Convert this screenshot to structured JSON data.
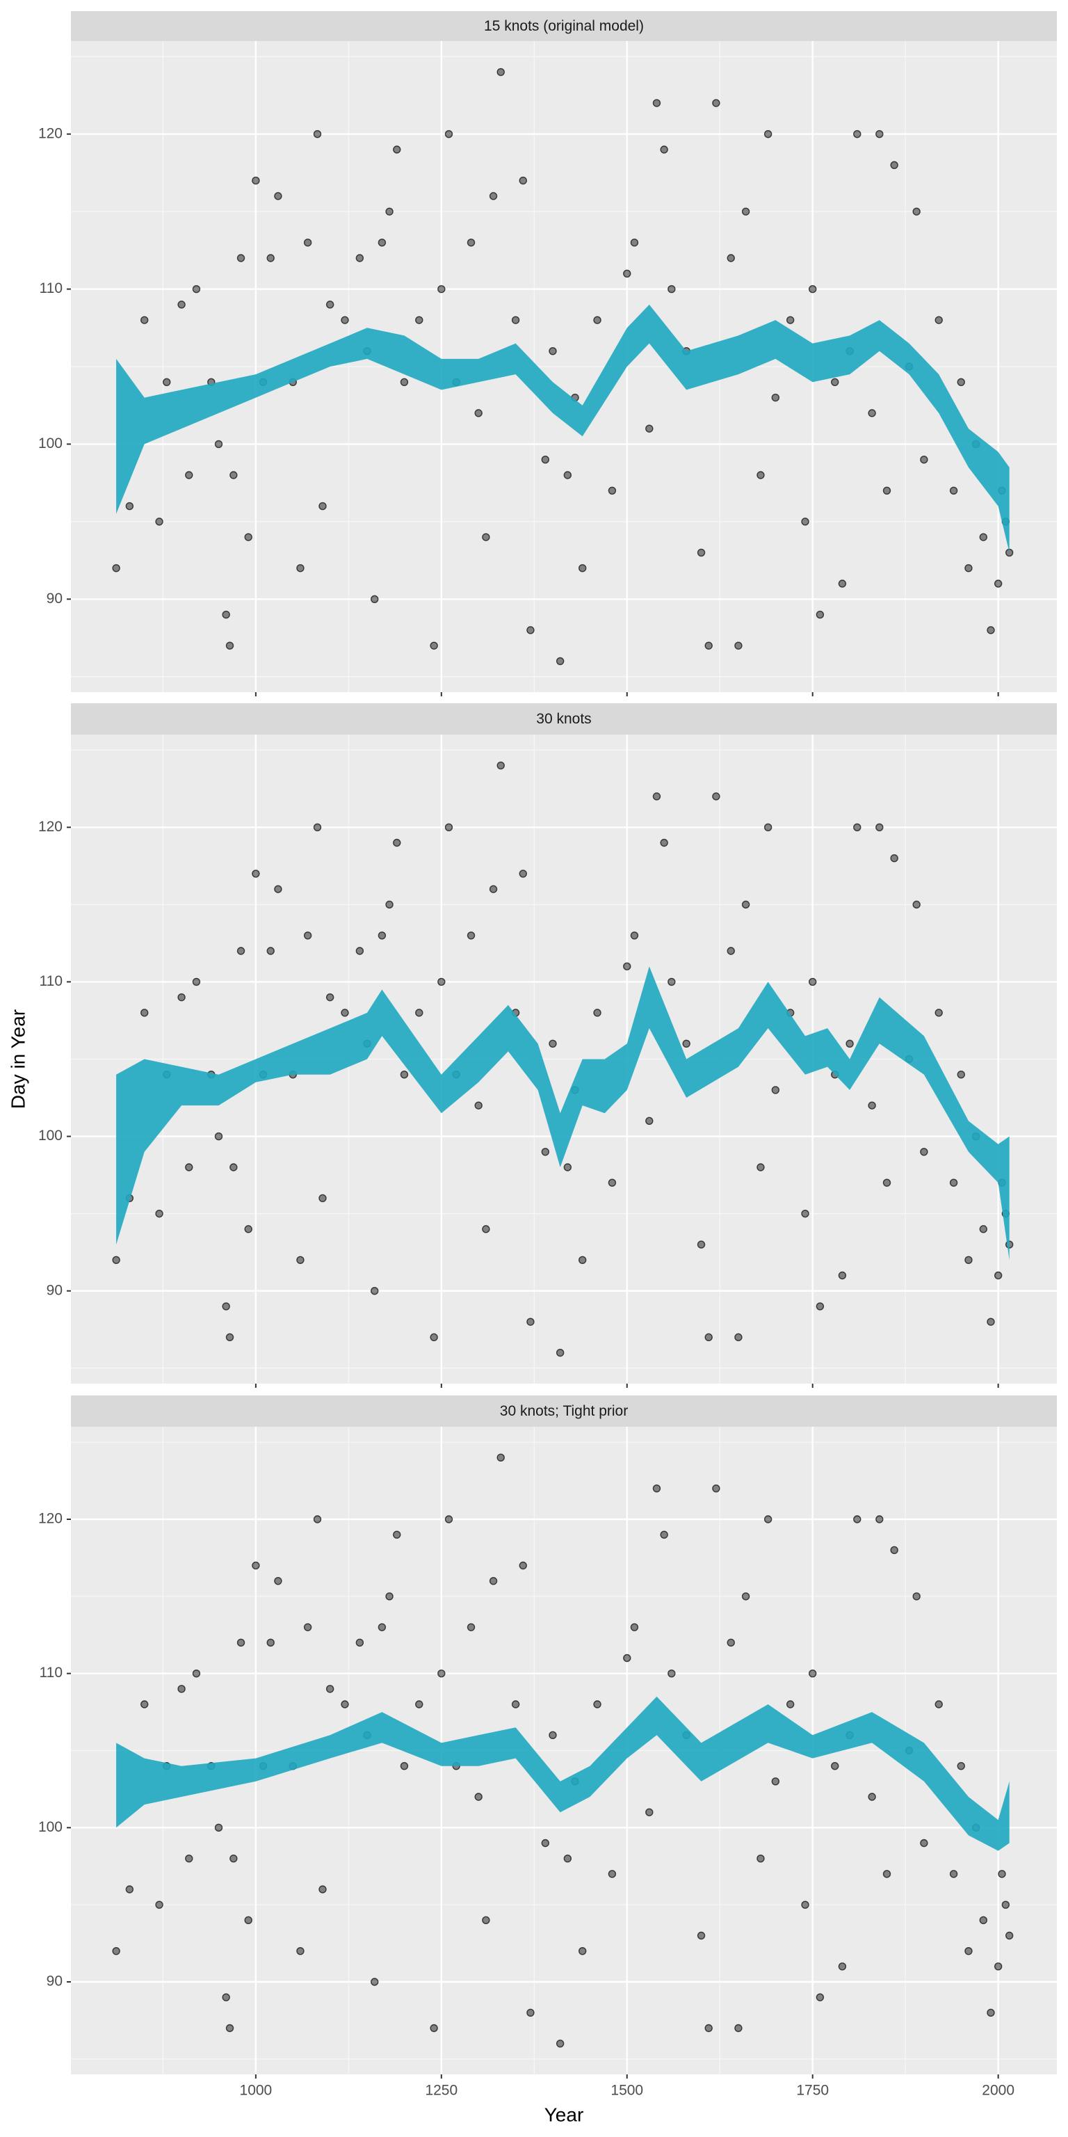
{
  "chart_data": [
    {
      "type": "scatter-band",
      "title": "15 knots (original model)",
      "points": {
        "color": "#000000",
        "x": [
          812,
          830,
          850,
          870,
          880,
          900,
          910,
          920,
          940,
          950,
          960,
          965,
          970,
          980,
          990,
          1000,
          1010,
          1020,
          1030,
          1050,
          1060,
          1070,
          1083,
          1090,
          1100,
          1120,
          1140,
          1150,
          1160,
          1170,
          1180,
          1190,
          1200,
          1220,
          1240,
          1250,
          1260,
          1270,
          1290,
          1300,
          1310,
          1320,
          1330,
          1350,
          1360,
          1370,
          1390,
          1400,
          1410,
          1420,
          1430,
          1440,
          1460,
          1480,
          1500,
          1510,
          1530,
          1540,
          1550,
          1560,
          1580,
          1600,
          1610,
          1620,
          1640,
          1650,
          1660,
          1680,
          1690,
          1700,
          1720,
          1740,
          1750,
          1760,
          1780,
          1790,
          1800,
          1810,
          1830,
          1840,
          1850,
          1860,
          1880,
          1890,
          1900,
          1920,
          1940,
          1950,
          1960,
          1970,
          1980,
          1990,
          2000,
          2005,
          2010,
          2015
        ],
        "y": [
          92,
          96,
          108,
          95,
          104,
          109,
          98,
          110,
          104,
          100,
          89,
          87,
          98,
          112,
          94,
          117,
          104,
          112,
          116,
          104,
          92,
          113,
          120,
          96,
          109,
          108,
          112,
          106,
          90,
          113,
          115,
          119,
          104,
          108,
          87,
          110,
          120,
          104,
          113,
          102,
          94,
          116,
          124,
          108,
          117,
          88,
          99,
          106,
          86,
          98,
          103,
          92,
          108,
          97,
          111,
          113,
          101,
          122,
          119,
          110,
          106,
          93,
          87,
          122,
          112,
          87,
          115,
          98,
          120,
          103,
          108,
          95,
          110,
          89,
          104,
          91,
          106,
          120,
          102,
          120,
          97,
          118,
          105,
          115,
          99,
          108,
          97,
          104,
          92,
          100,
          94,
          88,
          91,
          97,
          95,
          93
        ]
      },
      "band": {
        "color": "#1FA9C1",
        "x": [
          812,
          850,
          900,
          950,
          1000,
          1050,
          1100,
          1150,
          1200,
          1250,
          1300,
          1350,
          1400,
          1440,
          1500,
          1530,
          1580,
          1650,
          1700,
          1750,
          1800,
          1840,
          1880,
          1920,
          1960,
          2000,
          2015
        ],
        "lower": [
          95.5,
          100,
          101,
          102,
          103,
          104,
          105,
          105.5,
          104.5,
          103.5,
          104,
          104.5,
          102,
          100.5,
          105,
          106.5,
          103.5,
          104.5,
          105.5,
          104,
          104.5,
          106,
          104.5,
          102,
          98.5,
          96,
          93
        ],
        "upper": [
          105.5,
          103,
          103.5,
          104,
          104.5,
          105.5,
          106.5,
          107.5,
          107,
          105.5,
          105.5,
          106.5,
          104,
          102.5,
          107.5,
          109,
          106,
          107,
          108,
          106.5,
          107,
          108,
          106.5,
          104.5,
          101,
          99.5,
          98.5
        ]
      },
      "xlim": [
        751,
        2079
      ],
      "ylim": [
        84,
        126
      ],
      "xticks": [
        1000,
        1250,
        1500,
        1750,
        2000
      ],
      "yticks": [
        90,
        100,
        110,
        120
      ],
      "grid": true
    },
    {
      "type": "scatter-band",
      "title": "30 knots",
      "ylabel": "Day in Year",
      "points": {
        "color": "#000000",
        "x": [
          812,
          830,
          850,
          870,
          880,
          900,
          910,
          920,
          940,
          950,
          960,
          965,
          970,
          980,
          990,
          1000,
          1010,
          1020,
          1030,
          1050,
          1060,
          1070,
          1083,
          1090,
          1100,
          1120,
          1140,
          1150,
          1160,
          1170,
          1180,
          1190,
          1200,
          1220,
          1240,
          1250,
          1260,
          1270,
          1290,
          1300,
          1310,
          1320,
          1330,
          1350,
          1360,
          1370,
          1390,
          1400,
          1410,
          1420,
          1430,
          1440,
          1460,
          1480,
          1500,
          1510,
          1530,
          1540,
          1550,
          1560,
          1580,
          1600,
          1610,
          1620,
          1640,
          1650,
          1660,
          1680,
          1690,
          1700,
          1720,
          1740,
          1750,
          1760,
          1780,
          1790,
          1800,
          1810,
          1830,
          1840,
          1850,
          1860,
          1880,
          1890,
          1900,
          1920,
          1940,
          1950,
          1960,
          1970,
          1980,
          1990,
          2000,
          2005,
          2010,
          2015
        ],
        "y": [
          92,
          96,
          108,
          95,
          104,
          109,
          98,
          110,
          104,
          100,
          89,
          87,
          98,
          112,
          94,
          117,
          104,
          112,
          116,
          104,
          92,
          113,
          120,
          96,
          109,
          108,
          112,
          106,
          90,
          113,
          115,
          119,
          104,
          108,
          87,
          110,
          120,
          104,
          113,
          102,
          94,
          116,
          124,
          108,
          117,
          88,
          99,
          106,
          86,
          98,
          103,
          92,
          108,
          97,
          111,
          113,
          101,
          122,
          119,
          110,
          106,
          93,
          87,
          122,
          112,
          87,
          115,
          98,
          120,
          103,
          108,
          95,
          110,
          89,
          104,
          91,
          106,
          120,
          102,
          120,
          97,
          118,
          105,
          115,
          99,
          108,
          97,
          104,
          92,
          100,
          94,
          88,
          91,
          97,
          95,
          93
        ]
      },
      "band": {
        "color": "#1FA9C1",
        "x": [
          812,
          850,
          900,
          950,
          1000,
          1050,
          1100,
          1150,
          1170,
          1250,
          1300,
          1340,
          1380,
          1410,
          1440,
          1470,
          1500,
          1530,
          1580,
          1650,
          1690,
          1740,
          1770,
          1800,
          1840,
          1900,
          1960,
          2000,
          2015
        ],
        "lower": [
          93,
          99,
          102,
          102,
          103.5,
          104,
          104,
          105,
          106.5,
          101.5,
          103.5,
          105.5,
          103,
          98,
          102,
          101.5,
          103,
          107,
          102.5,
          104.5,
          107,
          104,
          104.5,
          103,
          106,
          104,
          99,
          97,
          92
        ],
        "upper": [
          104,
          105,
          104.5,
          104,
          105,
          106,
          107,
          108,
          109.5,
          104,
          106.5,
          108.5,
          106,
          101.5,
          105,
          105,
          106,
          111,
          105,
          107,
          110,
          106.5,
          107,
          105,
          109,
          106.5,
          101,
          99.5,
          100
        ]
      },
      "xlim": [
        751,
        2079
      ],
      "ylim": [
        84,
        126
      ],
      "xticks": [
        1000,
        1250,
        1500,
        1750,
        2000
      ],
      "yticks": [
        90,
        100,
        110,
        120
      ],
      "grid": true
    },
    {
      "type": "scatter-band",
      "title": "30 knots; Tight prior",
      "xlabel": "Year",
      "points": {
        "color": "#000000",
        "x": [
          812,
          830,
          850,
          870,
          880,
          900,
          910,
          920,
          940,
          950,
          960,
          965,
          970,
          980,
          990,
          1000,
          1010,
          1020,
          1030,
          1050,
          1060,
          1070,
          1083,
          1090,
          1100,
          1120,
          1140,
          1150,
          1160,
          1170,
          1180,
          1190,
          1200,
          1220,
          1240,
          1250,
          1260,
          1270,
          1290,
          1300,
          1310,
          1320,
          1330,
          1350,
          1360,
          1370,
          1390,
          1400,
          1410,
          1420,
          1430,
          1440,
          1460,
          1480,
          1500,
          1510,
          1530,
          1540,
          1550,
          1560,
          1580,
          1600,
          1610,
          1620,
          1640,
          1650,
          1660,
          1680,
          1690,
          1700,
          1720,
          1740,
          1750,
          1760,
          1780,
          1790,
          1800,
          1810,
          1830,
          1840,
          1850,
          1860,
          1880,
          1890,
          1900,
          1920,
          1940,
          1950,
          1960,
          1970,
          1980,
          1990,
          2000,
          2005,
          2010,
          2015
        ],
        "y": [
          92,
          96,
          108,
          95,
          104,
          109,
          98,
          110,
          104,
          100,
          89,
          87,
          98,
          112,
          94,
          117,
          104,
          112,
          116,
          104,
          92,
          113,
          120,
          96,
          109,
          108,
          112,
          106,
          90,
          113,
          115,
          119,
          104,
          108,
          87,
          110,
          120,
          104,
          113,
          102,
          94,
          116,
          124,
          108,
          117,
          88,
          99,
          106,
          86,
          98,
          103,
          92,
          108,
          97,
          111,
          113,
          101,
          122,
          119,
          110,
          106,
          93,
          87,
          122,
          112,
          87,
          115,
          98,
          120,
          103,
          108,
          95,
          110,
          89,
          104,
          91,
          106,
          120,
          102,
          120,
          97,
          118,
          105,
          115,
          99,
          108,
          97,
          104,
          92,
          100,
          94,
          88,
          91,
          97,
          95,
          93
        ]
      },
      "band": {
        "color": "#1FA9C1",
        "x": [
          812,
          850,
          900,
          1000,
          1100,
          1170,
          1250,
          1300,
          1350,
          1410,
          1450,
          1500,
          1540,
          1600,
          1690,
          1750,
          1830,
          1900,
          1960,
          2000,
          2015
        ],
        "lower": [
          100,
          101.5,
          102,
          103,
          104.5,
          105.5,
          104,
          104,
          104.5,
          101,
          102,
          104.5,
          106,
          103,
          105.5,
          104.5,
          105.5,
          103,
          99.5,
          98.5,
          99
        ],
        "upper": [
          105.5,
          104.5,
          104,
          104.5,
          106,
          107.5,
          105.5,
          106,
          106.5,
          103,
          104,
          106.5,
          108.5,
          105.5,
          108,
          106,
          107.5,
          105.5,
          102,
          100.5,
          103
        ]
      },
      "xlim": [
        751,
        2079
      ],
      "ylim": [
        84,
        126
      ],
      "xticks": [
        1000,
        1250,
        1500,
        1750,
        2000
      ],
      "yticks": [
        90,
        100,
        110,
        120
      ],
      "grid": true
    }
  ]
}
